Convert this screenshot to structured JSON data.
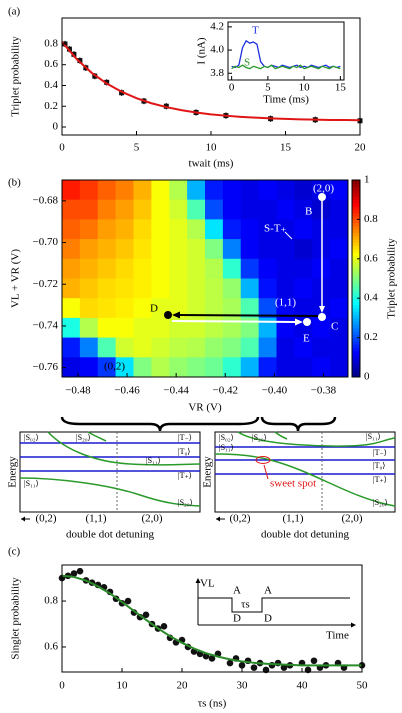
{
  "chart_data": [
    {
      "type": "scatter",
      "label": "(a)",
      "xlabel": "twait (ms)",
      "ylabel": "Triplet probability",
      "xlim": [
        0,
        20
      ],
      "ylim": [
        -0.077,
        1.05
      ],
      "xticks": [
        0,
        5,
        10,
        15,
        20
      ],
      "yticks": [
        0,
        0.2,
        0.4,
        0.6,
        0.8
      ],
      "series": [
        {
          "color": "#111111",
          "x": [
            0.2,
            0.5,
            0.8,
            1.2,
            1.6,
            2.2,
            3,
            4,
            5.5,
            7,
            9,
            11,
            14,
            17,
            20
          ],
          "values": [
            0.8,
            0.75,
            0.7,
            0.64,
            0.57,
            0.49,
            0.43,
            0.33,
            0.25,
            0.2,
            0.14,
            0.11,
            0.08,
            0.07,
            0.06
          ],
          "errors": [
            0.03,
            0.03,
            0.03,
            0.03,
            0.03,
            0.03,
            0.03,
            0.03,
            0.03,
            0.03,
            0.03,
            0.03,
            0.03,
            0.03,
            0.03
          ]
        },
        {
          "color": "#e01515",
          "mode": "line",
          "x": [
            0,
            1,
            2,
            3,
            4,
            5,
            6,
            7,
            8,
            9,
            10,
            11,
            12,
            13,
            14,
            15,
            16,
            17,
            18,
            19,
            20
          ],
          "values": [
            0.82,
            0.652,
            0.521,
            0.419,
            0.34,
            0.278,
            0.229,
            0.192,
            0.163,
            0.14,
            0.122,
            0.109,
            0.098,
            0.09,
            0.083,
            0.078,
            0.074,
            0.071,
            0.068,
            0.067,
            0.065
          ]
        }
      ],
      "inset": {
        "ylabel": "I (nA)",
        "xlabel": "Time (ms)",
        "xlim": [
          -0.5,
          15.5
        ],
        "ylim": [
          3.742,
          4.242
        ],
        "xticks": [
          0,
          5,
          10,
          15
        ],
        "yticks": [
          3.8,
          {
            "value": 4,
            "label": "4.0"
          },
          4.2
        ],
        "x": [
          0,
          0.5,
          1,
          1.5,
          2,
          2.5,
          3,
          3.5,
          4,
          4.5,
          5,
          5.5,
          6,
          6.5,
          7,
          7.5,
          8,
          8.5,
          9,
          9.5,
          10,
          10.5,
          11,
          11.5,
          12,
          12.5,
          13,
          13.5,
          14,
          14.5,
          15
        ],
        "series": [
          {
            "name": "T",
            "color": "#1f2fe0",
            "values": [
              3.86,
              3.85,
              3.87,
              4.02,
              4.08,
              4.06,
              4.07,
              4.05,
              3.9,
              3.86,
              3.85,
              3.87,
              3.86,
              3.85,
              3.87,
              3.86,
              3.85,
              3.86,
              3.87,
              3.85,
              3.86,
              3.85,
              3.87,
              3.86,
              3.85,
              3.86,
              3.87,
              3.85,
              3.86,
              3.85,
              3.86
            ]
          },
          {
            "name": "S",
            "color": "#2a9a2a",
            "values": [
              3.84,
              3.86,
              3.85,
              3.87,
              3.85,
              3.84,
              3.86,
              3.85,
              3.84,
              3.86,
              3.85,
              3.87,
              3.84,
              3.85,
              3.86,
              3.85,
              3.84,
              3.86,
              3.85,
              3.87,
              3.84,
              3.85,
              3.86,
              3.85,
              3.84,
              3.86,
              3.85,
              3.84,
              3.86,
              3.85,
              3.84
            ]
          }
        ]
      }
    },
    {
      "type": "heatmap",
      "label": "(b)",
      "xlabel": "VR (V)",
      "ylabel": "VL + VR (V)",
      "colormap": "jet",
      "xlim": [
        -0.4865,
        -0.37
      ],
      "ylim": [
        -0.7645,
        -0.67
      ],
      "xticks": [
        {
          "value": -0.48,
          "label": "−0.48"
        },
        {
          "value": -0.46,
          "label": "−0.46"
        },
        {
          "value": -0.44,
          "label": "−0.44"
        },
        {
          "value": -0.42,
          "label": "−0.42"
        },
        {
          "value": -0.4,
          "label": "−0.40"
        },
        {
          "value": -0.38,
          "label": "−0.38"
        }
      ],
      "yticks": [
        {
          "value": -0.68,
          "label": "−0.68"
        },
        {
          "value": -0.7,
          "label": "−0.70"
        },
        {
          "value": -0.72,
          "label": "−0.72"
        },
        {
          "value": -0.74,
          "label": "−0.74"
        },
        {
          "value": -0.76,
          "label": "−0.76"
        }
      ],
      "z": [
        [
          0.85,
          0.82,
          0.78,
          0.75,
          0.7,
          0.62,
          0.55,
          0.3,
          0.15,
          0.12,
          0.1,
          0.12,
          0.1,
          0.08,
          0.1,
          0.12
        ],
        [
          0.8,
          0.8,
          0.75,
          0.72,
          0.68,
          0.62,
          0.58,
          0.45,
          0.2,
          0.12,
          0.1,
          0.1,
          0.12,
          0.1,
          0.08,
          0.1
        ],
        [
          0.78,
          0.76,
          0.72,
          0.7,
          0.66,
          0.62,
          0.6,
          0.55,
          0.35,
          0.15,
          0.12,
          0.1,
          0.1,
          0.12,
          0.1,
          0.1
        ],
        [
          0.75,
          0.72,
          0.7,
          0.68,
          0.65,
          0.62,
          0.6,
          0.58,
          0.5,
          0.25,
          0.12,
          0.1,
          0.1,
          0.08,
          0.1,
          0.12
        ],
        [
          0.72,
          0.7,
          0.68,
          0.66,
          0.64,
          0.62,
          0.6,
          0.58,
          0.55,
          0.42,
          0.18,
          0.12,
          0.1,
          0.1,
          0.12,
          0.1
        ],
        [
          0.7,
          0.68,
          0.66,
          0.65,
          0.64,
          0.62,
          0.6,
          0.58,
          0.56,
          0.52,
          0.3,
          0.14,
          0.1,
          0.12,
          0.1,
          0.1
        ],
        [
          0.62,
          0.66,
          0.65,
          0.64,
          0.62,
          0.6,
          0.6,
          0.58,
          0.56,
          0.54,
          0.45,
          0.2,
          0.12,
          0.1,
          0.1,
          0.12
        ],
        [
          0.4,
          0.55,
          0.62,
          0.62,
          0.6,
          0.6,
          0.58,
          0.58,
          0.56,
          0.54,
          0.5,
          0.3,
          0.12,
          0.1,
          0.12,
          0.1
        ],
        [
          0.15,
          0.25,
          0.45,
          0.58,
          0.6,
          0.58,
          0.56,
          0.55,
          0.52,
          0.5,
          0.45,
          0.25,
          0.1,
          0.12,
          0.1,
          0.1
        ],
        [
          0.1,
          0.12,
          0.18,
          0.35,
          0.5,
          0.55,
          0.52,
          0.5,
          0.48,
          0.42,
          0.3,
          0.15,
          0.1,
          0.1,
          0.12,
          0.1
        ]
      ],
      "colorbar": {
        "label": "Triplet probability",
        "lim": [
          0,
          1
        ],
        "ticks": [
          0,
          0.2,
          0.4,
          0.6,
          0.8,
          1
        ]
      },
      "annotations": [
        "(2,0)",
        "B",
        "S-T₊",
        "C",
        "(1,1)",
        "D",
        "E",
        "(0,2)"
      ]
    },
    {
      "type": "scatter",
      "label": "(c)",
      "xlabel": "τs (ns)",
      "ylabel": "Singlet probability",
      "xlim": [
        0,
        50
      ],
      "ylim": [
        0.491,
        0.957
      ],
      "xticks": [
        0,
        10,
        20,
        30,
        40,
        50
      ],
      "yticks": [
        0.6,
        0.8
      ],
      "series": [
        {
          "color": "#111111",
          "x": [
            0,
            1,
            2,
            3,
            4,
            5,
            6,
            7,
            8,
            9,
            10,
            11,
            12,
            13,
            14,
            15,
            16,
            17,
            18,
            19,
            20,
            21,
            22,
            23,
            24,
            25,
            26,
            28,
            29,
            30,
            31,
            32,
            33,
            34,
            35,
            36,
            37,
            38,
            40,
            41,
            42,
            43,
            44,
            46,
            47,
            50
          ],
          "values": [
            0.9,
            0.91,
            0.92,
            0.93,
            0.89,
            0.88,
            0.87,
            0.86,
            0.84,
            0.81,
            0.79,
            0.8,
            0.75,
            0.73,
            0.74,
            0.7,
            0.68,
            0.69,
            0.64,
            0.62,
            0.63,
            0.6,
            0.58,
            0.57,
            0.56,
            0.55,
            0.57,
            0.53,
            0.55,
            0.52,
            0.54,
            0.51,
            0.53,
            0.5,
            0.52,
            0.53,
            0.51,
            0.52,
            0.53,
            0.5,
            0.54,
            0.51,
            0.52,
            0.53,
            0.51,
            0.52
          ]
        },
        {
          "color": "#2a8a2a",
          "mode": "line",
          "x": [
            0,
            2,
            4,
            6,
            8,
            10,
            12,
            14,
            16,
            18,
            20,
            22,
            24,
            26,
            28,
            30,
            32,
            34,
            36,
            38,
            40,
            42,
            44,
            46,
            48,
            50
          ],
          "values": [
            0.91,
            0.905,
            0.889,
            0.864,
            0.833,
            0.796,
            0.757,
            0.718,
            0.681,
            0.647,
            0.618,
            0.593,
            0.573,
            0.558,
            0.546,
            0.537,
            0.531,
            0.527,
            0.524,
            0.522,
            0.52,
            0.52,
            0.52,
            0.52,
            0.52,
            0.52
          ]
        }
      ],
      "inset": {
        "ylabel": "VL",
        "xlabel": "Time",
        "labels": [
          "A",
          "D",
          "τs",
          "A",
          "D"
        ]
      }
    }
  ],
  "energy_diagrams": [
    {
      "ylabel": "Energy",
      "xlabel": "double dot detuning",
      "regions": [
        "(0,2)",
        "(1,1)",
        "(2,0)"
      ],
      "states": [
        "|S₀₂⟩",
        "|S₂₀⟩",
        "|T₋⟩",
        "|S₁₁⟩",
        "|T₀⟩",
        "|S₁₁⟩",
        "|T₊⟩",
        "|S₂₀⟩"
      ]
    },
    {
      "ylabel": "Energy",
      "xlabel": "double dot detuning",
      "regions": [
        "(0,2)",
        "(1,1)",
        "(2,0)"
      ],
      "states": [
        "|S₀₂⟩",
        "|S₂₀⟩",
        "|S₁₁⟩",
        "|T₋⟩",
        "|S₁₁⟩",
        "|T₀⟩",
        "|T₊⟩",
        "|S₂₀⟩"
      ],
      "note": "sweet spot"
    }
  ]
}
